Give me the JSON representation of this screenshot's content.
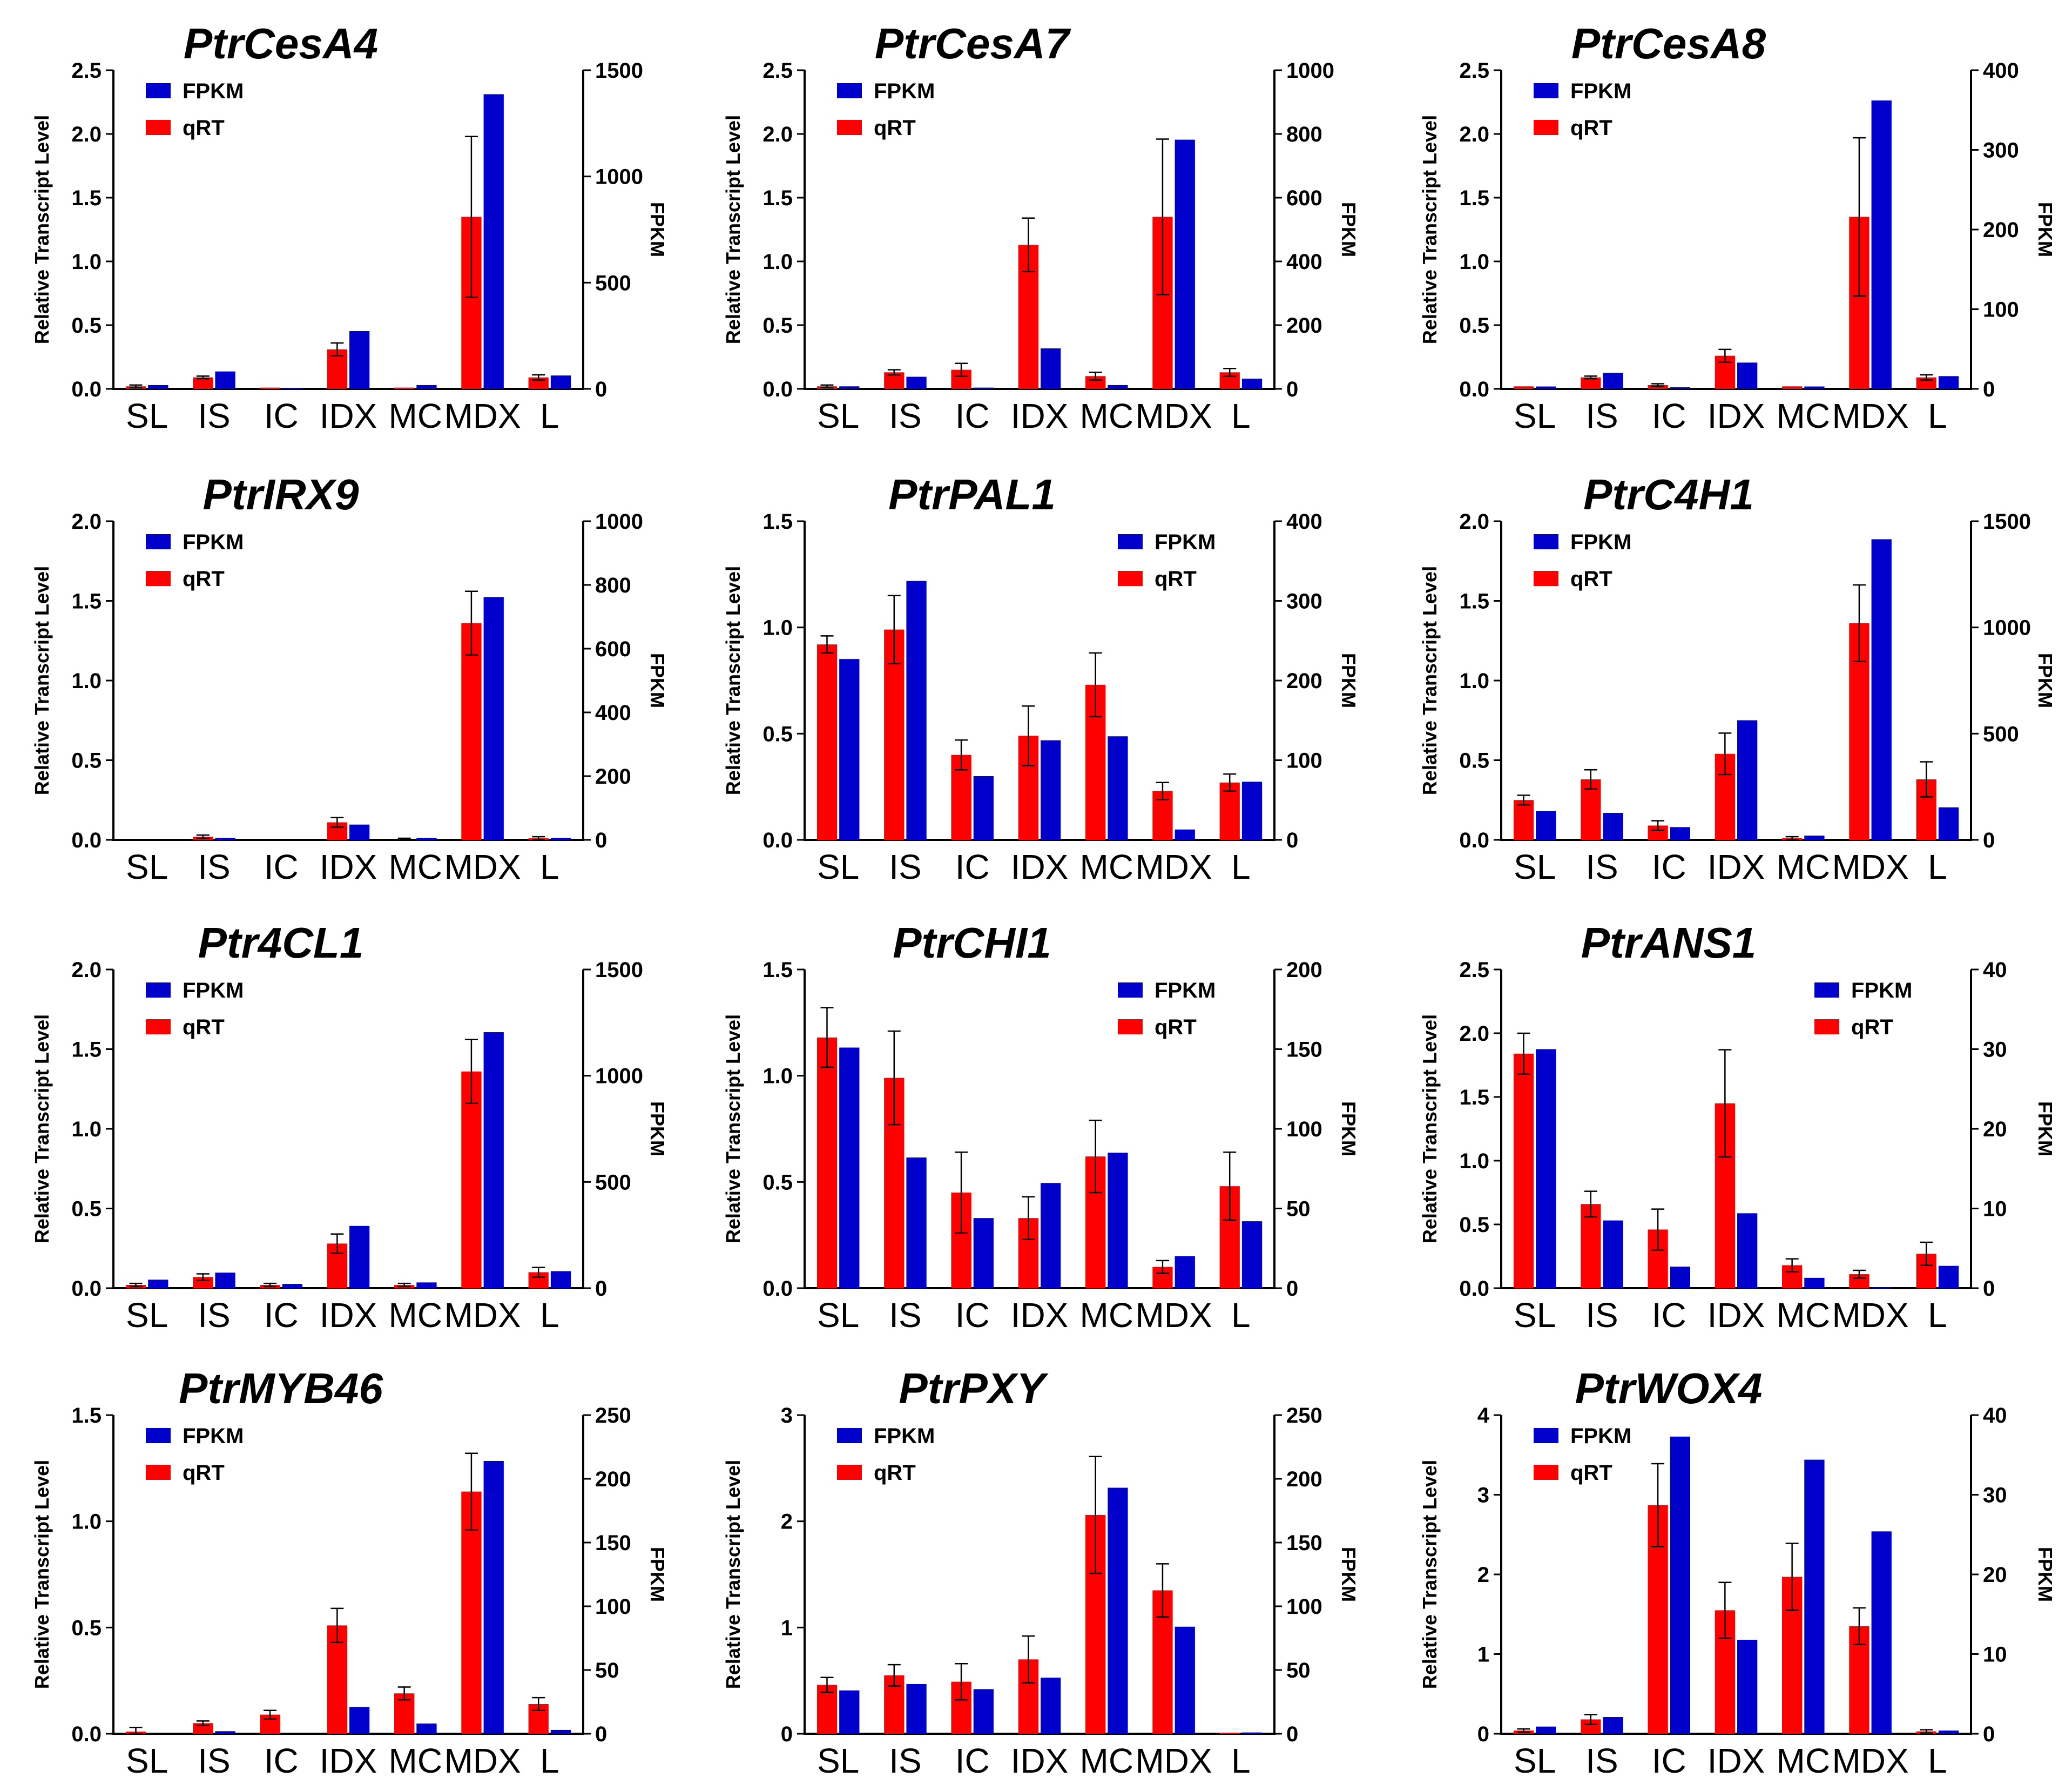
{
  "colors": {
    "fpkm": "#0000cc",
    "qrt": "#ff0000"
  },
  "y_label": "Relative Transcript Level",
  "y2_label": "FPKM",
  "chart_data": [
    {
      "type": "bar",
      "title": "PtrCesA4",
      "categories": [
        "SL",
        "IS",
        "IC",
        "IDX",
        "MC",
        "MDX",
        "L"
      ],
      "ylim": [
        0,
        2.5
      ],
      "yticks": [
        "0.0",
        "0.5",
        "1.0",
        "1.5",
        "2.0",
        "2.5"
      ],
      "y2lim": [
        0,
        1500
      ],
      "y2ticks": [
        "0",
        "500",
        "1000",
        "1500"
      ],
      "legend_position": "top-left",
      "legend": [
        "FPKM",
        "qRT"
      ],
      "series": [
        {
          "name": "qRT",
          "axis": "left",
          "values": [
            0.02,
            0.09,
            0.01,
            0.31,
            0.01,
            1.35,
            0.09
          ],
          "errors": [
            0.01,
            0.01,
            0.0,
            0.05,
            0.0,
            0.63,
            0.02
          ]
        },
        {
          "name": "FPKM",
          "axis": "right",
          "values": [
            18,
            82,
            5,
            272,
            18,
            1387,
            63
          ]
        }
      ]
    },
    {
      "type": "bar",
      "title": "PtrCesA7",
      "categories": [
        "SL",
        "IS",
        "IC",
        "IDX",
        "MC",
        "MDX",
        "L"
      ],
      "ylim": [
        0,
        2.5
      ],
      "yticks": [
        "0.0",
        "0.5",
        "1.0",
        "1.5",
        "2.0",
        "2.5"
      ],
      "y2lim": [
        0,
        1000
      ],
      "y2ticks": [
        "0",
        "200",
        "400",
        "600",
        "800",
        "1000"
      ],
      "legend_position": "top-left",
      "legend": [
        "FPKM",
        "qRT"
      ],
      "series": [
        {
          "name": "qRT",
          "axis": "left",
          "values": [
            0.02,
            0.13,
            0.15,
            1.13,
            0.1,
            1.35,
            0.13
          ],
          "errors": [
            0.01,
            0.02,
            0.05,
            0.21,
            0.03,
            0.61,
            0.03
          ]
        },
        {
          "name": "FPKM",
          "axis": "right",
          "values": [
            8,
            38,
            4,
            127,
            12,
            782,
            32
          ]
        }
      ]
    },
    {
      "type": "bar",
      "title": "PtrCesA8",
      "categories": [
        "SL",
        "IS",
        "IC",
        "IDX",
        "MC",
        "MDX",
        "L"
      ],
      "ylim": [
        0,
        2.5
      ],
      "yticks": [
        "0.0",
        "0.5",
        "1.0",
        "1.5",
        "2.0",
        "2.5"
      ],
      "y2lim": [
        0,
        400
      ],
      "y2ticks": [
        "0",
        "100",
        "200",
        "300",
        "400"
      ],
      "legend_position": "top-left",
      "legend": [
        "FPKM",
        "qRT"
      ],
      "series": [
        {
          "name": "qRT",
          "axis": "left",
          "values": [
            0.02,
            0.09,
            0.03,
            0.26,
            0.02,
            1.35,
            0.09
          ],
          "errors": [
            0.0,
            0.01,
            0.01,
            0.05,
            0.0,
            0.62,
            0.02
          ]
        },
        {
          "name": "FPKM",
          "axis": "right",
          "values": [
            3,
            20,
            2,
            33,
            3,
            362,
            16
          ]
        }
      ]
    },
    {
      "type": "bar",
      "title": "PtrIRX9",
      "categories": [
        "SL",
        "IS",
        "IC",
        "IDX",
        "MC",
        "MDX",
        "L"
      ],
      "ylim": [
        0,
        2.0
      ],
      "yticks": [
        "0.0",
        "0.5",
        "1.0",
        "1.5",
        "2.0"
      ],
      "y2lim": [
        0,
        1000
      ],
      "y2ticks": [
        "0",
        "200",
        "400",
        "600",
        "800",
        "1000"
      ],
      "legend_position": "top-left",
      "legend": [
        "FPKM",
        "qRT"
      ],
      "series": [
        {
          "name": "qRT",
          "axis": "left",
          "values": [
            0.0,
            0.02,
            0.0,
            0.11,
            0.0,
            1.36,
            0.01
          ],
          "errors": [
            0.0,
            0.01,
            0.0,
            0.03,
            0.01,
            0.2,
            0.01
          ]
        },
        {
          "name": "FPKM",
          "axis": "right",
          "values": [
            0,
            6,
            0,
            48,
            6,
            762,
            6
          ]
        }
      ]
    },
    {
      "type": "bar",
      "title": "PtrPAL1",
      "categories": [
        "SL",
        "IS",
        "IC",
        "IDX",
        "MC",
        "MDX",
        "L"
      ],
      "ylim": [
        0,
        1.5
      ],
      "yticks": [
        "0.0",
        "0.5",
        "1.0",
        "1.5"
      ],
      "y2lim": [
        0,
        400
      ],
      "y2ticks": [
        "0",
        "100",
        "200",
        "300",
        "400"
      ],
      "legend_position": "top-right",
      "legend": [
        "FPKM",
        "qRT"
      ],
      "series": [
        {
          "name": "qRT",
          "axis": "left",
          "values": [
            0.92,
            0.99,
            0.4,
            0.49,
            0.73,
            0.23,
            0.27
          ],
          "errors": [
            0.04,
            0.16,
            0.07,
            0.14,
            0.15,
            0.04,
            0.04
          ]
        },
        {
          "name": "FPKM",
          "axis": "right",
          "values": [
            227,
            325,
            80,
            125,
            130,
            13,
            73
          ]
        }
      ]
    },
    {
      "type": "bar",
      "title": "PtrC4H1",
      "categories": [
        "SL",
        "IS",
        "IC",
        "IDX",
        "MC",
        "MDX",
        "L"
      ],
      "ylim": [
        0,
        2.0
      ],
      "yticks": [
        "0.0",
        "0.5",
        "1.0",
        "1.5",
        "2.0"
      ],
      "y2lim": [
        0,
        1500
      ],
      "y2ticks": [
        "0",
        "500",
        "1000",
        "1500"
      ],
      "legend_position": "top-left",
      "legend": [
        "FPKM",
        "qRT"
      ],
      "series": [
        {
          "name": "qRT",
          "axis": "left",
          "values": [
            0.25,
            0.38,
            0.09,
            0.54,
            0.01,
            1.36,
            0.38
          ],
          "errors": [
            0.03,
            0.06,
            0.03,
            0.13,
            0.01,
            0.24,
            0.11
          ]
        },
        {
          "name": "FPKM",
          "axis": "right",
          "values": [
            135,
            127,
            60,
            563,
            20,
            1415,
            153
          ]
        }
      ]
    },
    {
      "type": "bar",
      "title": "Ptr4CL1",
      "categories": [
        "SL",
        "IS",
        "IC",
        "IDX",
        "MC",
        "MDX",
        "L"
      ],
      "ylim": [
        0,
        2.0
      ],
      "yticks": [
        "0.0",
        "0.5",
        "1.0",
        "1.5",
        "2.0"
      ],
      "y2lim": [
        0,
        1500
      ],
      "y2ticks": [
        "0",
        "500",
        "1000",
        "1500"
      ],
      "legend_position": "top-left",
      "legend": [
        "FPKM",
        "qRT"
      ],
      "series": [
        {
          "name": "qRT",
          "axis": "left",
          "values": [
            0.02,
            0.07,
            0.02,
            0.28,
            0.02,
            1.36,
            0.1
          ],
          "errors": [
            0.01,
            0.02,
            0.01,
            0.06,
            0.01,
            0.2,
            0.03
          ]
        },
        {
          "name": "FPKM",
          "axis": "right",
          "values": [
            40,
            73,
            20,
            293,
            27,
            1205,
            80
          ]
        }
      ]
    },
    {
      "type": "bar",
      "title": "PtrCHI1",
      "categories": [
        "SL",
        "IS",
        "IC",
        "IDX",
        "MC",
        "MDX",
        "L"
      ],
      "ylim": [
        0,
        1.5
      ],
      "yticks": [
        "0.0",
        "0.5",
        "1.0",
        "1.5"
      ],
      "y2lim": [
        0,
        200
      ],
      "y2ticks": [
        "0",
        "50",
        "100",
        "150",
        "200"
      ],
      "legend_position": "top-right",
      "legend": [
        "FPKM",
        "qRT"
      ],
      "series": [
        {
          "name": "qRT",
          "axis": "left",
          "values": [
            1.18,
            0.99,
            0.45,
            0.33,
            0.62,
            0.1,
            0.48
          ],
          "errors": [
            0.14,
            0.22,
            0.19,
            0.1,
            0.17,
            0.03,
            0.16
          ]
        },
        {
          "name": "FPKM",
          "axis": "right",
          "values": [
            151,
            82,
            44,
            66,
            85,
            20,
            42
          ]
        }
      ]
    },
    {
      "type": "bar",
      "title": "PtrANS1",
      "categories": [
        "SL",
        "IS",
        "IC",
        "IDX",
        "MC",
        "MDX",
        "L"
      ],
      "ylim": [
        0,
        2.5
      ],
      "yticks": [
        "0.0",
        "0.5",
        "1.0",
        "1.5",
        "2.0",
        "2.5"
      ],
      "y2lim": [
        0,
        40
      ],
      "y2ticks": [
        "0",
        "10",
        "20",
        "30",
        "40"
      ],
      "legend_position": "top-right",
      "legend": [
        "FPKM",
        "qRT"
      ],
      "series": [
        {
          "name": "qRT",
          "axis": "left",
          "values": [
            1.84,
            0.66,
            0.46,
            1.45,
            0.18,
            0.11,
            0.27
          ],
          "errors": [
            0.16,
            0.1,
            0.16,
            0.42,
            0.05,
            0.03,
            0.09
          ]
        },
        {
          "name": "FPKM",
          "axis": "right",
          "values": [
            30,
            8.5,
            2.7,
            9.4,
            1.3,
            0.1,
            2.8
          ]
        }
      ]
    },
    {
      "type": "bar",
      "title": "PtrMYB46",
      "categories": [
        "SL",
        "IS",
        "IC",
        "IDX",
        "MC",
        "MDX",
        "L"
      ],
      "ylim": [
        0,
        1.5
      ],
      "yticks": [
        "0.0",
        "0.5",
        "1.0",
        "1.5"
      ],
      "y2lim": [
        0,
        250
      ],
      "y2ticks": [
        "0",
        "50",
        "100",
        "150",
        "200",
        "250"
      ],
      "legend_position": "top-left",
      "legend": [
        "FPKM",
        "qRT"
      ],
      "series": [
        {
          "name": "qRT",
          "axis": "left",
          "values": [
            0.01,
            0.05,
            0.09,
            0.51,
            0.19,
            1.14,
            0.14
          ],
          "errors": [
            0.02,
            0.01,
            0.02,
            0.08,
            0.03,
            0.18,
            0.03
          ]
        },
        {
          "name": "FPKM",
          "axis": "right",
          "values": [
            0,
            2,
            0,
            21,
            8,
            214,
            3
          ]
        }
      ]
    },
    {
      "type": "bar",
      "title": "PtrPXY",
      "categories": [
        "SL",
        "IS",
        "IC",
        "IDX",
        "MC",
        "MDX",
        "L"
      ],
      "ylim": [
        0,
        3
      ],
      "yticks": [
        "0",
        "1",
        "2",
        "3"
      ],
      "y2lim": [
        0,
        250
      ],
      "y2ticks": [
        "0",
        "50",
        "100",
        "150",
        "200",
        "250"
      ],
      "legend_position": "top-left",
      "legend": [
        "FPKM",
        "qRT"
      ],
      "series": [
        {
          "name": "qRT",
          "axis": "left",
          "values": [
            0.46,
            0.55,
            0.49,
            0.7,
            2.06,
            1.35,
            0.01
          ],
          "errors": [
            0.07,
            0.1,
            0.17,
            0.22,
            0.55,
            0.25,
            0.0
          ]
        },
        {
          "name": "FPKM",
          "axis": "right",
          "values": [
            34,
            39,
            35,
            44,
            193,
            84,
            1
          ]
        }
      ]
    },
    {
      "type": "bar",
      "title": "PtrWOX4",
      "categories": [
        "SL",
        "IS",
        "IC",
        "IDX",
        "MC",
        "MDX",
        "L"
      ],
      "ylim": [
        0,
        4
      ],
      "yticks": [
        "0",
        "1",
        "2",
        "3",
        "4"
      ],
      "y2lim": [
        0,
        40
      ],
      "y2ticks": [
        "0",
        "10",
        "20",
        "30",
        "40"
      ],
      "legend_position": "top-left",
      "legend": [
        "FPKM",
        "qRT"
      ],
      "series": [
        {
          "name": "qRT",
          "axis": "left",
          "values": [
            0.04,
            0.18,
            2.87,
            1.55,
            1.97,
            1.35,
            0.03
          ],
          "errors": [
            0.02,
            0.06,
            0.52,
            0.35,
            0.42,
            0.23,
            0.02
          ]
        },
        {
          "name": "FPKM",
          "axis": "right",
          "values": [
            0.9,
            2.1,
            37.3,
            11.8,
            34.4,
            25.4,
            0.4
          ]
        }
      ]
    }
  ]
}
